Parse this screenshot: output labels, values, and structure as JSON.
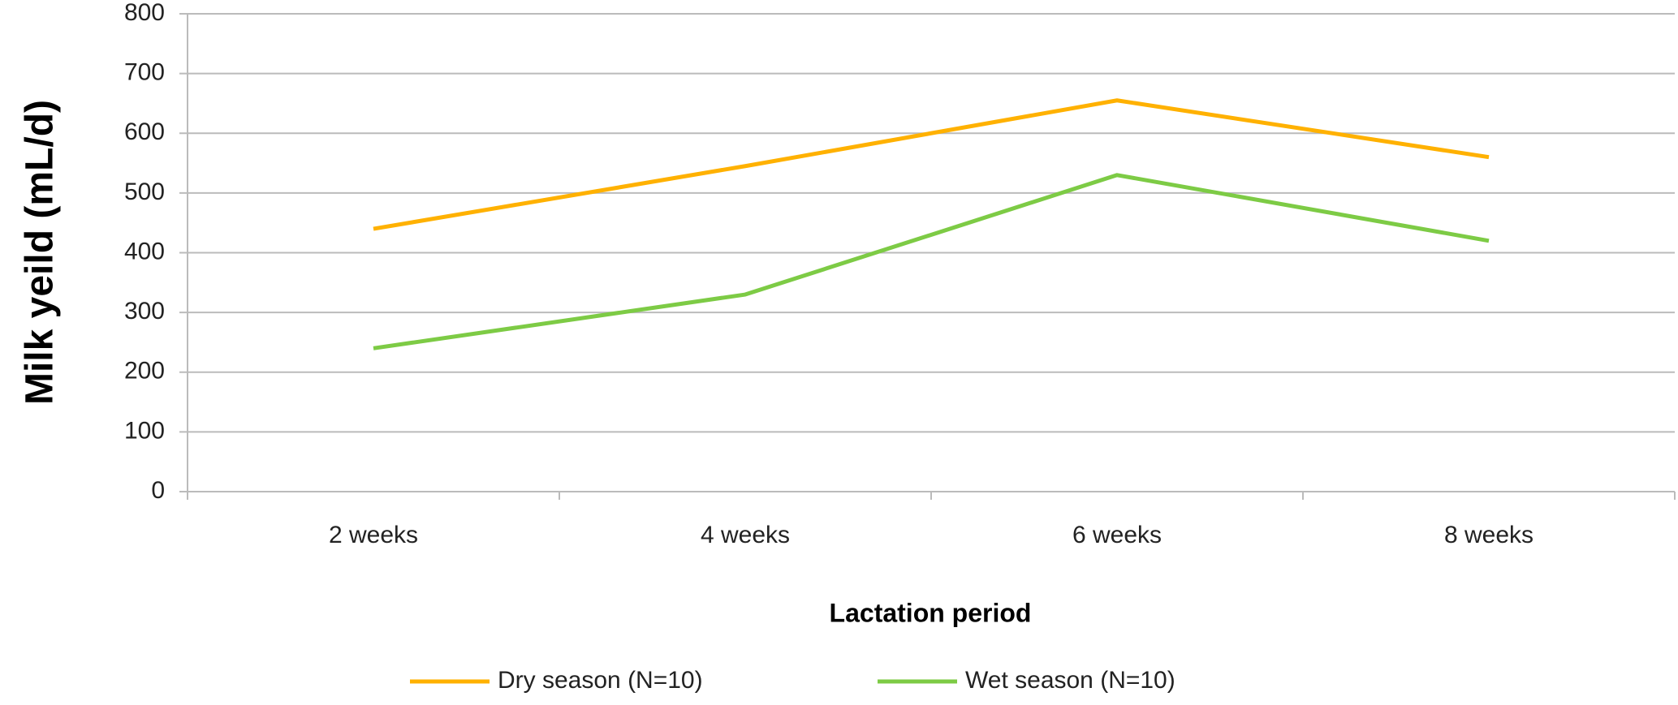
{
  "chart_data": {
    "type": "line",
    "y_label": "Milk yeild (mL/d)",
    "x_label": "Lactation period",
    "categories": [
      "2 weeks",
      "4 weeks",
      "6 weeks",
      "8 weeks"
    ],
    "series": [
      {
        "name": "Dry season (N=10)",
        "color": "#ffb100",
        "values": [
          440,
          545,
          655,
          560
        ]
      },
      {
        "name": "Wet season (N=10)",
        "color": "#7dcb45",
        "values": [
          240,
          330,
          530,
          420
        ]
      }
    ],
    "ylim": [
      0,
      800
    ],
    "yticks": [
      0,
      100,
      200,
      300,
      400,
      500,
      600,
      700,
      800
    ],
    "grid": true,
    "legend": "bottom"
  }
}
